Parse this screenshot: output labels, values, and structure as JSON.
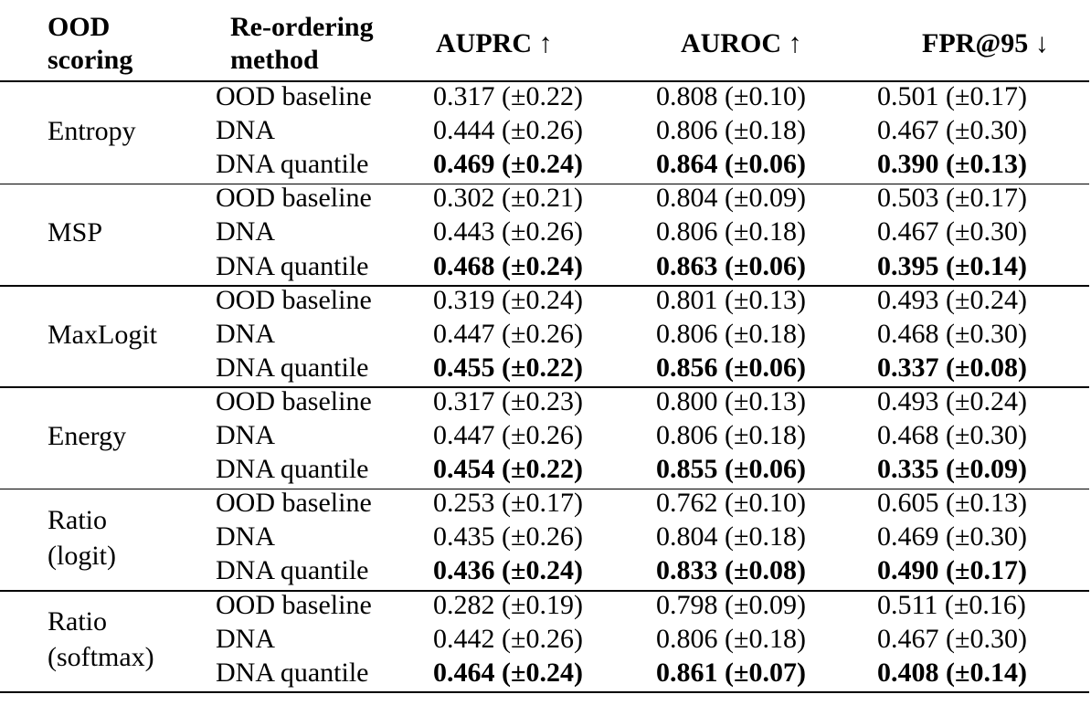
{
  "header": {
    "ood_scoring": [
      "OOD",
      "scoring"
    ],
    "reordering_method": [
      "Re-ordering",
      "method"
    ],
    "auprc": "AUPRC ↑",
    "auroc": "AUROC ↑",
    "fpr": "FPR@95 ↓"
  },
  "groups": [
    {
      "score": [
        "Entropy"
      ],
      "rows": [
        {
          "method": "OOD baseline",
          "auprc": "0.317 (±0.22)",
          "auroc": "0.808 (±0.10)",
          "fpr": "0.501 (±0.17)",
          "bold": false
        },
        {
          "method": "DNA",
          "auprc": "0.444 (±0.26)",
          "auroc": "0.806 (±0.18)",
          "fpr": "0.467 (±0.30)",
          "bold": false
        },
        {
          "method": "DNA quantile",
          "auprc": "0.469 (±0.24)",
          "auroc": "0.864 (±0.06)",
          "fpr": "0.390 (±0.13)",
          "bold": true
        }
      ]
    },
    {
      "score": [
        "MSP"
      ],
      "rows": [
        {
          "method": "OOD baseline",
          "auprc": "0.302 (±0.21)",
          "auroc": "0.804 (±0.09)",
          "fpr": "0.503 (±0.17)",
          "bold": false
        },
        {
          "method": "DNA",
          "auprc": "0.443 (±0.26)",
          "auroc": "0.806 (±0.18)",
          "fpr": "0.467 (±0.30)",
          "bold": false
        },
        {
          "method": "DNA quantile",
          "auprc": "0.468 (±0.24)",
          "auroc": "0.863 (±0.06)",
          "fpr": "0.395 (±0.14)",
          "bold": true
        }
      ]
    },
    {
      "score": [
        "MaxLogit"
      ],
      "rows": [
        {
          "method": "OOD baseline",
          "auprc": "0.319 (±0.24)",
          "auroc": "0.801 (±0.13)",
          "fpr": "0.493 (±0.24)",
          "bold": false
        },
        {
          "method": "DNA",
          "auprc": "0.447 (±0.26)",
          "auroc": "0.806 (±0.18)",
          "fpr": "0.468 (±0.30)",
          "bold": false
        },
        {
          "method": "DNA quantile",
          "auprc": "0.455 (±0.22)",
          "auroc": "0.856 (±0.06)",
          "fpr": "0.337 (±0.08)",
          "bold": true
        }
      ]
    },
    {
      "score": [
        "Energy"
      ],
      "rows": [
        {
          "method": "OOD baseline",
          "auprc": "0.317 (±0.23)",
          "auroc": "0.800 (±0.13)",
          "fpr": "0.493 (±0.24)",
          "bold": false
        },
        {
          "method": "DNA",
          "auprc": "0.447 (±0.26)",
          "auroc": "0.806 (±0.18)",
          "fpr": "0.468 (±0.30)",
          "bold": false
        },
        {
          "method": "DNA quantile",
          "auprc": "0.454 (±0.22)",
          "auroc": "0.855 (±0.06)",
          "fpr": "0.335 (±0.09)",
          "bold": true
        }
      ]
    },
    {
      "score": [
        "Ratio",
        "(logit)"
      ],
      "rows": [
        {
          "method": "OOD baseline",
          "auprc": "0.253 (±0.17)",
          "auroc": "0.762 (±0.10)",
          "fpr": "0.605 (±0.13)",
          "bold": false
        },
        {
          "method": "DNA",
          "auprc": "0.435 (±0.26)",
          "auroc": "0.804 (±0.18)",
          "fpr": "0.469 (±0.30)",
          "bold": false
        },
        {
          "method": "DNA quantile",
          "auprc": "0.436 (±0.24)",
          "auroc": "0.833 (±0.08)",
          "fpr": "0.490 (±0.17)",
          "bold": true
        }
      ]
    },
    {
      "score": [
        "Ratio",
        "(softmax)"
      ],
      "rows": [
        {
          "method": "OOD baseline",
          "auprc": "0.282 (±0.19)",
          "auroc": "0.798 (±0.09)",
          "fpr": "0.511 (±0.16)",
          "bold": false
        },
        {
          "method": "DNA",
          "auprc": "0.442 (±0.26)",
          "auroc": "0.806 (±0.18)",
          "fpr": "0.467 (±0.30)",
          "bold": false
        },
        {
          "method": "DNA quantile",
          "auprc": "0.464 (±0.24)",
          "auroc": "0.861 (±0.07)",
          "fpr": "0.408 (±0.14)",
          "bold": true
        }
      ]
    }
  ]
}
